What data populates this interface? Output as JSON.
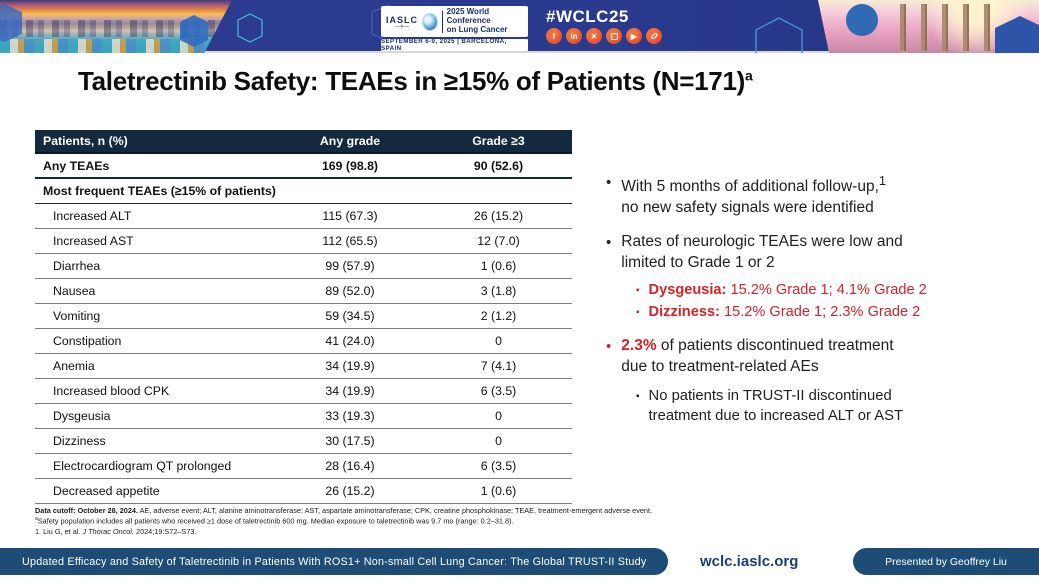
{
  "banner": {
    "org": "IASLC",
    "plane_glyph": "—✈—",
    "conference_name": "2025 World Conference\non Lung Cancer",
    "date_location": "SEPTEMBER 6-9, 2025   |   BARCELONA, SPAIN",
    "hashtag": "#WCLC25",
    "social_icons": [
      "facebook-icon",
      "linkedin-icon",
      "x-icon",
      "instagram-icon",
      "youtube-icon",
      "paperclip-icon"
    ]
  },
  "title": {
    "text": "Taletrectinib Safety: TEAEs in ≥15% of Patients (N=171)",
    "superscript": "a"
  },
  "table": {
    "columns": [
      "Patients, n (%)",
      "Any grade",
      "Grade ≥3"
    ],
    "summary_row": {
      "label": "Any TEAEs",
      "any_grade": "169 (98.8)",
      "grade_ge3": "90 (52.6)"
    },
    "section_row": "Most frequent TEAEs (≥15% of patients)",
    "rows": [
      {
        "label": "Increased ALT",
        "any_grade": "115 (67.3)",
        "grade_ge3": "26 (15.2)"
      },
      {
        "label": "Increased AST",
        "any_grade": "112 (65.5)",
        "grade_ge3": "12 (7.0)"
      },
      {
        "label": "Diarrhea",
        "any_grade": "99 (57.9)",
        "grade_ge3": "1 (0.6)"
      },
      {
        "label": "Nausea",
        "any_grade": "89 (52.0)",
        "grade_ge3": "3 (1.8)"
      },
      {
        "label": "Vomiting",
        "any_grade": "59 (34.5)",
        "grade_ge3": "2 (1.2)"
      },
      {
        "label": "Constipation",
        "any_grade": "41 (24.0)",
        "grade_ge3": "0"
      },
      {
        "label": "Anemia",
        "any_grade": "34 (19.9)",
        "grade_ge3": "7 (4.1)"
      },
      {
        "label": "Increased blood CPK",
        "any_grade": "34 (19.9)",
        "grade_ge3": "6 (3.5)"
      },
      {
        "label": "Dysgeusia",
        "any_grade": "33 (19.3)",
        "grade_ge3": "0"
      },
      {
        "label": "Dizziness",
        "any_grade": "30 (17.5)",
        "grade_ge3": "0"
      },
      {
        "label": "Electrocardiogram QT prolonged",
        "any_grade": "28 (16.4)",
        "grade_ge3": "6 (3.5)"
      },
      {
        "label": "Decreased appetite",
        "any_grade": "26 (15.2)",
        "grade_ge3": "1 (0.6)"
      }
    ]
  },
  "bullets": {
    "b1": {
      "text1": "With 5 months of additional follow-up,",
      "sup": "1",
      "text2": "\nno new safety signals were identified"
    },
    "b2": {
      "text": "Rates of neurologic TEAEs were low and\nlimited to Grade 1 or 2"
    },
    "sub_red": [
      {
        "label": "Dysgeusia:",
        "text": " 15.2% Grade 1; 4.1% Grade 2"
      },
      {
        "label": "Dizziness:",
        "text": " 15.2% Grade 1; 2.3% Grade 2"
      }
    ],
    "b3": {
      "highlight": "2.3%",
      "text": " of patients discontinued treatment\ndue to treatment-related AEs"
    },
    "b3_sub": "No patients in TRUST-II discontinued\ntreatment due to increased ALT or AST"
  },
  "footnotes": {
    "line1_bold": "Data cutoff: October 28, 2024.",
    "line1_rest": " AE, adverse event; ALT, alanine aminotransferase; AST, aspartate aminotransferase; CPK, creatine phosphokinase; TEAE, treatment-emergent adverse event.",
    "line2_sup": "a",
    "line2": "Safety population includes all patients who received ≥1 dose of taletrectinib 600 mg. Median exposure to taletrectinib was 9.7 mo (range: 0.2–31.8).",
    "line3_pre": "1. Liu G, et al. ",
    "line3_italic": "J Thorac Oncol.",
    "line3_post": " 2024;19:S72–S73."
  },
  "footer": {
    "study_title": "Updated Efficacy and Safety of Taletrectinib in Patients With ROS1+ Non-small Cell Lung Cancer: The Global TRUST-II Study",
    "website": "wclc.iaslc.org",
    "presenter": "Presented by Geoffrey Liu"
  },
  "colors": {
    "banner_blue": "#2a3a8e",
    "table_header_navy": "#15293e",
    "footer_navy": "#1d4d77",
    "accent_red": "#d2232a",
    "social_red": "#e03527"
  }
}
